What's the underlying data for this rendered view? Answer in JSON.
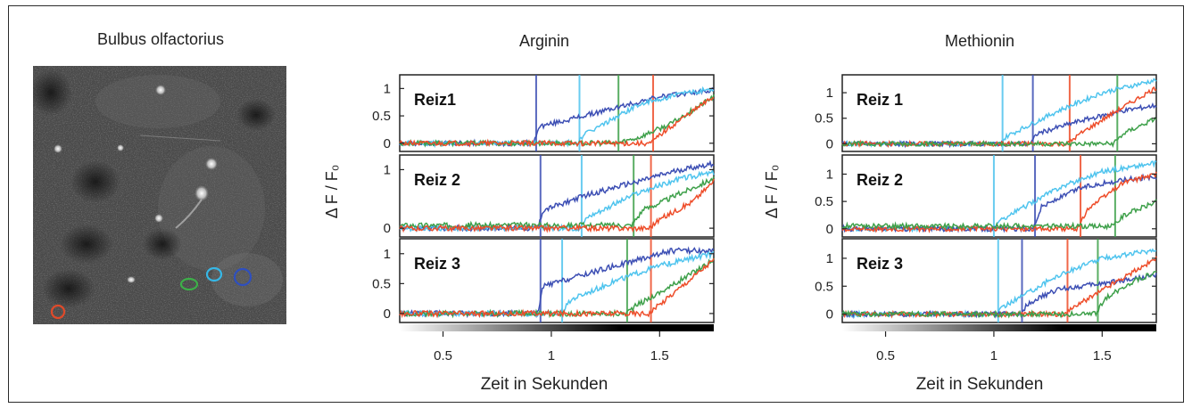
{
  "micrograph": {
    "title": "Bulbus olfactorius",
    "roi_colors": [
      "#e04a2a",
      "#3db049",
      "#36b7e6",
      "#2e4fbf"
    ]
  },
  "colors": {
    "blue": "#3d4fb4",
    "cyan": "#4fc4ee",
    "green": "#3ea04a",
    "red": "#ee4d2a",
    "frame": "#2a2a2a"
  },
  "chart_data": [
    {
      "type": "line",
      "title": "Arginin",
      "ylabel": "Δ F / F₀",
      "xlabel": "Zeit in Sekunden",
      "xlim": [
        0.3,
        1.75
      ],
      "xticks": [
        "0.5",
        "1",
        "1.5"
      ],
      "panels": [
        {
          "label": "Reiz1",
          "ylim": [
            -0.15,
            1.25
          ],
          "yticks": [
            "0",
            "0.5",
            "1"
          ],
          "series": [
            {
              "color": "blue",
              "onset": 0.93,
              "values": [
                [
                  0.3,
                  0
                ],
                [
                  0.92,
                  0
                ],
                [
                  0.94,
                  0.3
                ],
                [
                  1.1,
                  0.45
                ],
                [
                  1.3,
                  0.65
                ],
                [
                  1.5,
                  0.85
                ],
                [
                  1.75,
                  0.97
                ]
              ]
            },
            {
              "color": "cyan",
              "onset": 1.13,
              "values": [
                [
                  0.3,
                  0
                ],
                [
                  1.12,
                  0
                ],
                [
                  1.15,
                  0.15
                ],
                [
                  1.4,
                  0.7
                ],
                [
                  1.6,
                  0.9
                ],
                [
                  1.75,
                  1.0
                ]
              ]
            },
            {
              "color": "green",
              "onset": 1.31,
              "values": [
                [
                  0.3,
                  0
                ],
                [
                  1.3,
                  0
                ],
                [
                  1.4,
                  0.1
                ],
                [
                  1.55,
                  0.35
                ],
                [
                  1.75,
                  0.85
                ]
              ]
            },
            {
              "color": "red",
              "onset": 1.47,
              "values": [
                [
                  0.3,
                  0
                ],
                [
                  1.46,
                  0
                ],
                [
                  1.5,
                  0.15
                ],
                [
                  1.62,
                  0.5
                ],
                [
                  1.75,
                  0.85
                ]
              ]
            }
          ]
        },
        {
          "label": "Reiz 2",
          "ylim": [
            -0.15,
            1.25
          ],
          "yticks": [
            "0",
            "1"
          ],
          "series": [
            {
              "color": "blue",
              "onset": 0.95,
              "values": [
                [
                  0.3,
                  0
                ],
                [
                  0.94,
                  0
                ],
                [
                  0.96,
                  0.3
                ],
                [
                  1.15,
                  0.55
                ],
                [
                  1.4,
                  0.8
                ],
                [
                  1.6,
                  1.0
                ],
                [
                  1.75,
                  1.1
                ]
              ]
            },
            {
              "color": "cyan",
              "onset": 1.14,
              "values": [
                [
                  0.3,
                  0
                ],
                [
                  1.13,
                  0
                ],
                [
                  1.17,
                  0.2
                ],
                [
                  1.4,
                  0.6
                ],
                [
                  1.6,
                  0.85
                ],
                [
                  1.75,
                  0.95
                ]
              ]
            },
            {
              "color": "green",
              "onset": 1.38,
              "values": [
                [
                  0.3,
                  0.05
                ],
                [
                  1.37,
                  0.05
                ],
                [
                  1.42,
                  0.3
                ],
                [
                  1.6,
                  0.6
                ],
                [
                  1.75,
                  0.85
                ]
              ]
            },
            {
              "color": "red",
              "onset": 1.46,
              "values": [
                [
                  0.3,
                  0
                ],
                [
                  1.45,
                  0
                ],
                [
                  1.5,
                  0.15
                ],
                [
                  1.65,
                  0.45
                ],
                [
                  1.75,
                  0.8
                ]
              ]
            }
          ]
        },
        {
          "label": "Reiz 3",
          "ylim": [
            -0.15,
            1.25
          ],
          "yticks": [
            "0",
            "0.5",
            "1"
          ],
          "series": [
            {
              "color": "blue",
              "onset": 0.95,
              "values": [
                [
                  0.3,
                  0
                ],
                [
                  0.94,
                  0
                ],
                [
                  0.96,
                  0.45
                ],
                [
                  1.2,
                  0.7
                ],
                [
                  1.4,
                  0.9
                ],
                [
                  1.55,
                  1.05
                ],
                [
                  1.75,
                  1.05
                ]
              ]
            },
            {
              "color": "cyan",
              "onset": 1.05,
              "values": [
                [
                  0.3,
                  0
                ],
                [
                  1.04,
                  0
                ],
                [
                  1.1,
                  0.25
                ],
                [
                  1.3,
                  0.55
                ],
                [
                  1.5,
                  0.8
                ],
                [
                  1.75,
                  1.0
                ]
              ]
            },
            {
              "color": "green",
              "onset": 1.35,
              "values": [
                [
                  0.3,
                  0
                ],
                [
                  1.34,
                  0
                ],
                [
                  1.4,
                  0.15
                ],
                [
                  1.55,
                  0.45
                ],
                [
                  1.75,
                  0.9
                ]
              ]
            },
            {
              "color": "red",
              "onset": 1.46,
              "values": [
                [
                  0.3,
                  0
                ],
                [
                  1.45,
                  0
                ],
                [
                  1.5,
                  0.15
                ],
                [
                  1.65,
                  0.6
                ],
                [
                  1.75,
                  0.9
                ]
              ]
            }
          ]
        }
      ]
    },
    {
      "type": "line",
      "title": "Methionin",
      "ylabel": "Δ F / F₀",
      "xlabel": "Zeit in Sekunden",
      "xlim": [
        0.3,
        1.75
      ],
      "xticks": [
        "0.5",
        "1",
        "1.5"
      ],
      "panels": [
        {
          "label": "Reiz 1",
          "ylim": [
            -0.15,
            1.35
          ],
          "yticks": [
            "0",
            "0.5",
            "1"
          ],
          "series": [
            {
              "color": "cyan",
              "onset": 1.04,
              "values": [
                [
                  0.3,
                  0
                ],
                [
                  1.03,
                  0
                ],
                [
                  1.06,
                  0.15
                ],
                [
                  1.3,
                  0.65
                ],
                [
                  1.5,
                  1.0
                ],
                [
                  1.75,
                  1.25
                ]
              ]
            },
            {
              "color": "blue",
              "onset": 1.18,
              "values": [
                [
                  0.3,
                  0
                ],
                [
                  1.17,
                  0
                ],
                [
                  1.2,
                  0.2
                ],
                [
                  1.4,
                  0.45
                ],
                [
                  1.6,
                  0.65
                ],
                [
                  1.75,
                  0.75
                ]
              ]
            },
            {
              "color": "red",
              "onset": 1.35,
              "values": [
                [
                  0.3,
                  0
                ],
                [
                  1.34,
                  0
                ],
                [
                  1.4,
                  0.2
                ],
                [
                  1.55,
                  0.6
                ],
                [
                  1.75,
                  1.1
                ]
              ]
            },
            {
              "color": "green",
              "onset": 1.57,
              "values": [
                [
                  0.3,
                  0
                ],
                [
                  1.55,
                  0
                ],
                [
                  1.6,
                  0.2
                ],
                [
                  1.75,
                  0.5
                ]
              ]
            }
          ]
        },
        {
          "label": "Reiz 2",
          "ylim": [
            -0.15,
            1.35
          ],
          "yticks": [
            "0",
            "0.5",
            "1"
          ],
          "series": [
            {
              "color": "cyan",
              "onset": 1.0,
              "values": [
                [
                  0.3,
                  0
                ],
                [
                  0.99,
                  0
                ],
                [
                  1.05,
                  0.2
                ],
                [
                  1.3,
                  0.75
                ],
                [
                  1.5,
                  1.05
                ],
                [
                  1.75,
                  1.2
                ]
              ]
            },
            {
              "color": "blue",
              "onset": 1.19,
              "values": [
                [
                  0.3,
                  0
                ],
                [
                  1.18,
                  0
                ],
                [
                  1.22,
                  0.4
                ],
                [
                  1.4,
                  0.75
                ],
                [
                  1.6,
                  0.9
                ],
                [
                  1.75,
                  0.95
                ]
              ]
            },
            {
              "color": "red",
              "onset": 1.4,
              "values": [
                [
                  0.3,
                  0
                ],
                [
                  1.39,
                  0
                ],
                [
                  1.43,
                  0.35
                ],
                [
                  1.6,
                  0.85
                ],
                [
                  1.75,
                  1.0
                ]
              ]
            },
            {
              "color": "green",
              "onset": 1.56,
              "values": [
                [
                  0.3,
                  0.05
                ],
                [
                  1.55,
                  0.05
                ],
                [
                  1.6,
                  0.25
                ],
                [
                  1.75,
                  0.5
                ]
              ]
            }
          ]
        },
        {
          "label": "Reiz 3",
          "ylim": [
            -0.15,
            1.35
          ],
          "yticks": [
            "0",
            "0.5",
            "1"
          ],
          "series": [
            {
              "color": "cyan",
              "onset": 1.02,
              "values": [
                [
                  0.3,
                  0
                ],
                [
                  1.01,
                  0
                ],
                [
                  1.05,
                  0.15
                ],
                [
                  1.3,
                  0.7
                ],
                [
                  1.5,
                  1.0
                ],
                [
                  1.75,
                  1.15
                ]
              ]
            },
            {
              "color": "blue",
              "onset": 1.13,
              "values": [
                [
                  0.3,
                  0
                ],
                [
                  1.12,
                  0
                ],
                [
                  1.16,
                  0.2
                ],
                [
                  1.3,
                  0.45
                ],
                [
                  1.5,
                  0.55
                ],
                [
                  1.75,
                  0.7
                ]
              ]
            },
            {
              "color": "red",
              "onset": 1.34,
              "values": [
                [
                  0.3,
                  0
                ],
                [
                  1.33,
                  0
                ],
                [
                  1.38,
                  0.15
                ],
                [
                  1.55,
                  0.55
                ],
                [
                  1.75,
                  1.0
                ]
              ]
            },
            {
              "color": "green",
              "onset": 1.48,
              "values": [
                [
                  0.3,
                  0
                ],
                [
                  1.47,
                  0
                ],
                [
                  1.52,
                  0.3
                ],
                [
                  1.65,
                  0.6
                ],
                [
                  1.75,
                  0.75
                ]
              ]
            }
          ]
        }
      ]
    }
  ]
}
